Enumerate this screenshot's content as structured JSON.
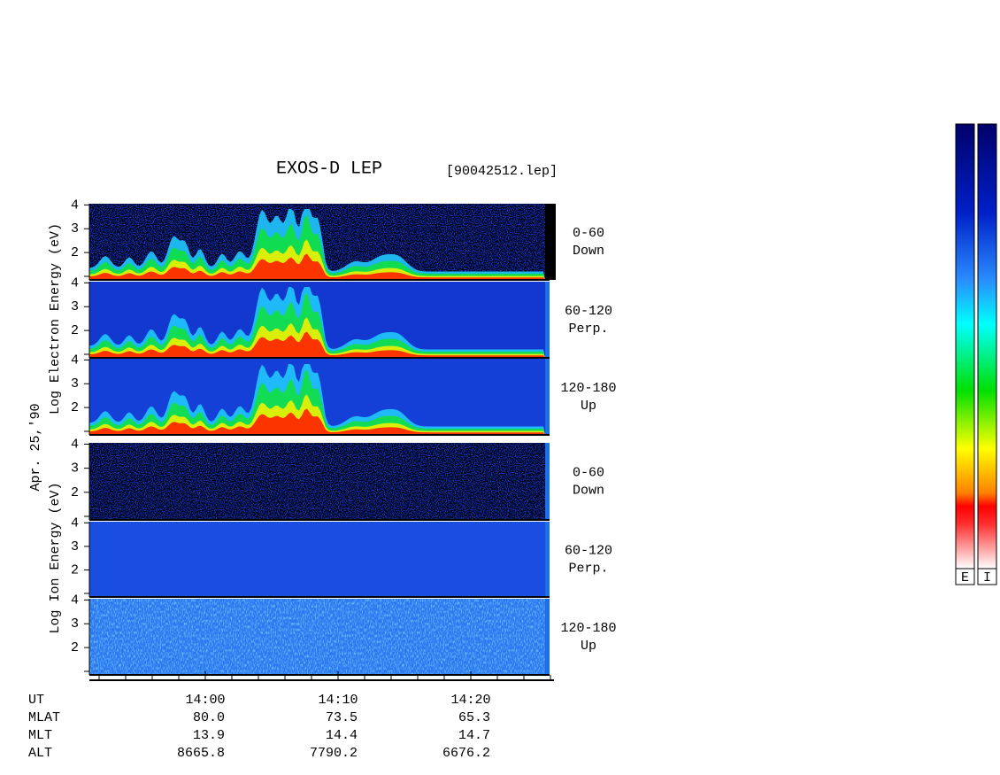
{
  "title": "EXOS-D LEP",
  "file": "[90042512.lep]",
  "date": "Apr. 25,'90",
  "electron": {
    "ylabel": "Log  Electron  Energy (eV)",
    "yticks": [
      4,
      3,
      2
    ],
    "panels": [
      {
        "range": "0-60",
        "dir": "Down"
      },
      {
        "range": "60-120",
        "dir": "Perp."
      },
      {
        "range": "120-180",
        "dir": "Up"
      }
    ]
  },
  "ion": {
    "ylabel": "Log  Ion  Energy (eV)",
    "yticks": [
      4,
      3,
      2
    ],
    "panels": [
      {
        "range": "0-60",
        "dir": "Down"
      },
      {
        "range": "60-120",
        "dir": "Perp."
      },
      {
        "range": "120-180",
        "dir": "Up"
      }
    ]
  },
  "footer": [
    {
      "label": "UT",
      "values": [
        "14:00",
        "14:10",
        "14:20"
      ]
    },
    {
      "label": "MLAT",
      "values": [
        "80.0",
        "73.5",
        "65.3"
      ]
    },
    {
      "label": "MLT",
      "values": [
        "13.9",
        "14.4",
        "14.7"
      ]
    },
    {
      "label": "ALT",
      "values": [
        "8665.8",
        "7790.2",
        "6676.2"
      ]
    }
  ],
  "colorbars": [
    "E",
    "I"
  ]
}
